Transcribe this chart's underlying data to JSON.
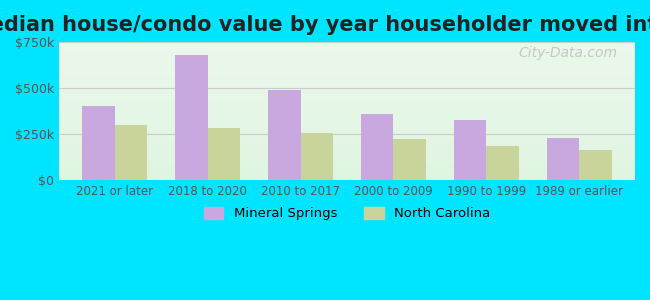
{
  "title": "Median house/condo value by year householder moved into unit",
  "categories": [
    "2021 or later",
    "2018 to 2020",
    "2010 to 2017",
    "2000 to 2009",
    "1990 to 1999",
    "1989 or earlier"
  ],
  "mineral_springs": [
    400000,
    680000,
    490000,
    360000,
    325000,
    230000
  ],
  "north_carolina": [
    300000,
    280000,
    255000,
    225000,
    185000,
    165000
  ],
  "bar_color_ms": "#c9a8e0",
  "bar_color_nc": "#c8d49a",
  "bg_outer": "#00e5ff",
  "bg_inner_top": "#e8f5e9",
  "bg_inner_bottom": "#f0faf0",
  "ylim": [
    0,
    750000
  ],
  "yticks": [
    0,
    250000,
    500000,
    750000
  ],
  "ytick_labels": [
    "$0",
    "$250k",
    "$500k",
    "$750k"
  ],
  "title_fontsize": 15,
  "legend_ms": "Mineral Springs",
  "legend_nc": "North Carolina",
  "watermark": "City-Data.com"
}
